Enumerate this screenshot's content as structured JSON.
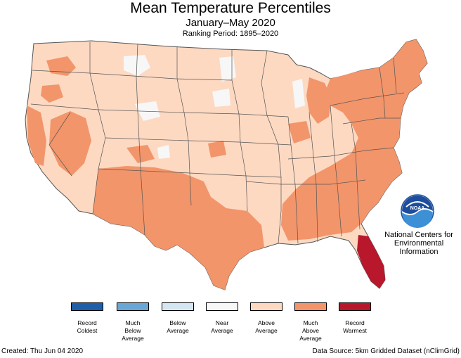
{
  "header": {
    "title": "Mean Temperature Percentiles",
    "subtitle": "January–May 2020",
    "period": "Ranking Period: 1895–2020"
  },
  "organization": {
    "logo_text": "NOAA",
    "logo_icon": "noaa-logo",
    "name_line1": "National Centers for",
    "name_line2": "Environmental",
    "name_line3": "Information"
  },
  "colors": {
    "record_coldest": "#1f5ea8",
    "much_below": "#6aa7d4",
    "below": "#d4e6f1",
    "near": "#f7f7f7",
    "above": "#fdd9c2",
    "much_above": "#f2956a",
    "record_warmest": "#b9172c"
  },
  "legend": [
    {
      "line1": "Record",
      "line2": "Coldest",
      "line3": "",
      "color": "#1f5ea8"
    },
    {
      "line1": "Much",
      "line2": "Below",
      "line3": "Average",
      "color": "#6aa7d4"
    },
    {
      "line1": "Below",
      "line2": "Average",
      "line3": "",
      "color": "#d4e6f1"
    },
    {
      "line1": "Near",
      "line2": "Average",
      "line3": "",
      "color": "#f7f7f7"
    },
    {
      "line1": "Above",
      "line2": "Average",
      "line3": "",
      "color": "#fdd9c2"
    },
    {
      "line1": "Much",
      "line2": "Above",
      "line3": "Average",
      "color": "#f2956a"
    },
    {
      "line1": "Record",
      "line2": "Warmest",
      "line3": "",
      "color": "#b9172c"
    }
  ],
  "footer": {
    "created": "Created: Thu Jun 04 2020",
    "source": "Data Source: 5km Gridded Dataset (nClimGrid)"
  }
}
